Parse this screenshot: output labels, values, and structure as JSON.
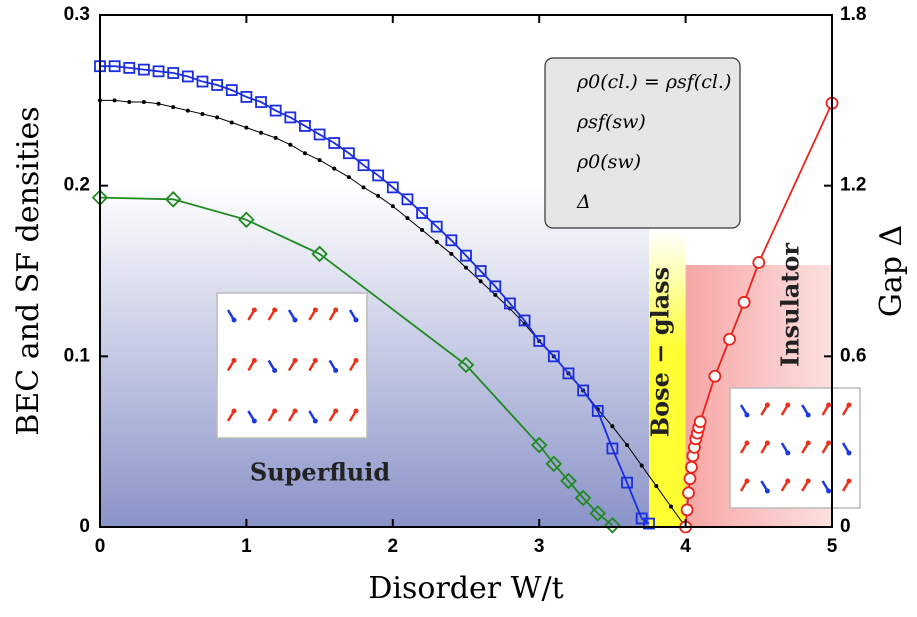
{
  "chart_data": {
    "type": "line",
    "xlabel": "Disorder W/t",
    "ylabel": "BEC and SF densities",
    "y2label": "Gap Δ",
    "xlim": [
      0,
      5
    ],
    "xticks": [
      0,
      1,
      2,
      3,
      4,
      5
    ],
    "ylim": [
      0,
      0.3
    ],
    "yticks": [
      0,
      0.1,
      0.2,
      0.3
    ],
    "y2lim": [
      0,
      1.8
    ],
    "y2ticks": [
      0,
      0.6,
      1.2,
      1.8
    ],
    "legend": "upper right",
    "regions": [
      {
        "label": "Superfluid",
        "x": [
          0,
          3.75
        ],
        "color": "#8a93c8"
      },
      {
        "label": "Bose − glass",
        "x": [
          3.75,
          4
        ],
        "color": "#ffff33"
      },
      {
        "label": "Insulator",
        "x": [
          4,
          5
        ],
        "color": "#f7a6a6"
      }
    ],
    "series": [
      {
        "name": "ρ0(cl.) = ρsf(cl.)",
        "color": "#000000",
        "marker": "dot",
        "x": [
          0,
          0.1,
          0.2,
          0.3,
          0.4,
          0.5,
          0.6,
          0.7,
          0.8,
          0.9,
          1,
          1.1,
          1.2,
          1.3,
          1.4,
          1.5,
          1.6,
          1.7,
          1.8,
          1.9,
          2,
          2.1,
          2.2,
          2.3,
          2.4,
          2.5,
          2.6,
          2.7,
          2.8,
          2.9,
          3,
          3.1,
          3.2,
          3.3,
          3.4,
          3.5,
          3.6,
          3.7,
          3.8,
          3.9,
          4
        ],
        "values": [
          0.25,
          0.25,
          0.249,
          0.249,
          0.248,
          0.246,
          0.244,
          0.242,
          0.24,
          0.237,
          0.234,
          0.231,
          0.228,
          0.224,
          0.219,
          0.215,
          0.21,
          0.205,
          0.199,
          0.194,
          0.188,
          0.181,
          0.174,
          0.167,
          0.16,
          0.152,
          0.144,
          0.136,
          0.128,
          0.119,
          0.109,
          0.1,
          0.09,
          0.08,
          0.069,
          0.059,
          0.048,
          0.036,
          0.024,
          0.012,
          0
        ]
      },
      {
        "name": "ρsf(sw)",
        "color": "#1a2ee0",
        "marker": "square",
        "x": [
          0,
          0.1,
          0.2,
          0.3,
          0.4,
          0.5,
          0.6,
          0.7,
          0.8,
          0.9,
          1,
          1.1,
          1.2,
          1.3,
          1.4,
          1.5,
          1.6,
          1.7,
          1.8,
          1.9,
          2,
          2.1,
          2.2,
          2.3,
          2.4,
          2.5,
          2.6,
          2.7,
          2.8,
          2.9,
          3,
          3.1,
          3.2,
          3.3,
          3.4,
          3.5,
          3.6,
          3.7,
          3.75
        ],
        "values": [
          0.27,
          0.27,
          0.269,
          0.268,
          0.267,
          0.266,
          0.264,
          0.261,
          0.259,
          0.256,
          0.252,
          0.249,
          0.244,
          0.24,
          0.235,
          0.23,
          0.225,
          0.219,
          0.212,
          0.206,
          0.199,
          0.192,
          0.184,
          0.176,
          0.168,
          0.159,
          0.15,
          0.141,
          0.131,
          0.121,
          0.109,
          0.1,
          0.09,
          0.08,
          0.068,
          0.046,
          0.026,
          0.005,
          0.002
        ]
      },
      {
        "name": "ρ0(sw)",
        "color": "#1f8a1f",
        "marker": "diamond",
        "x": [
          0,
          0.5,
          1,
          1.5,
          2.5,
          3,
          3.1,
          3.2,
          3.3,
          3.4,
          3.5
        ],
        "values": [
          0.193,
          0.192,
          0.18,
          0.16,
          0.095,
          0.048,
          0.037,
          0.027,
          0.017,
          0.008,
          0.001
        ]
      },
      {
        "name": "Δ",
        "color": "#e8231a",
        "marker": "circle",
        "axis": "y2",
        "x": [
          4,
          4.01,
          4.02,
          4.03,
          4.04,
          4.05,
          4.06,
          4.07,
          4.08,
          4.09,
          4.1,
          4.2,
          4.3,
          4.4,
          4.5,
          5
        ],
        "values": [
          0,
          0.06,
          0.12,
          0.17,
          0.21,
          0.25,
          0.28,
          0.31,
          0.33,
          0.35,
          0.37,
          0.53,
          0.66,
          0.79,
          0.93,
          1.49
        ]
      }
    ]
  }
}
